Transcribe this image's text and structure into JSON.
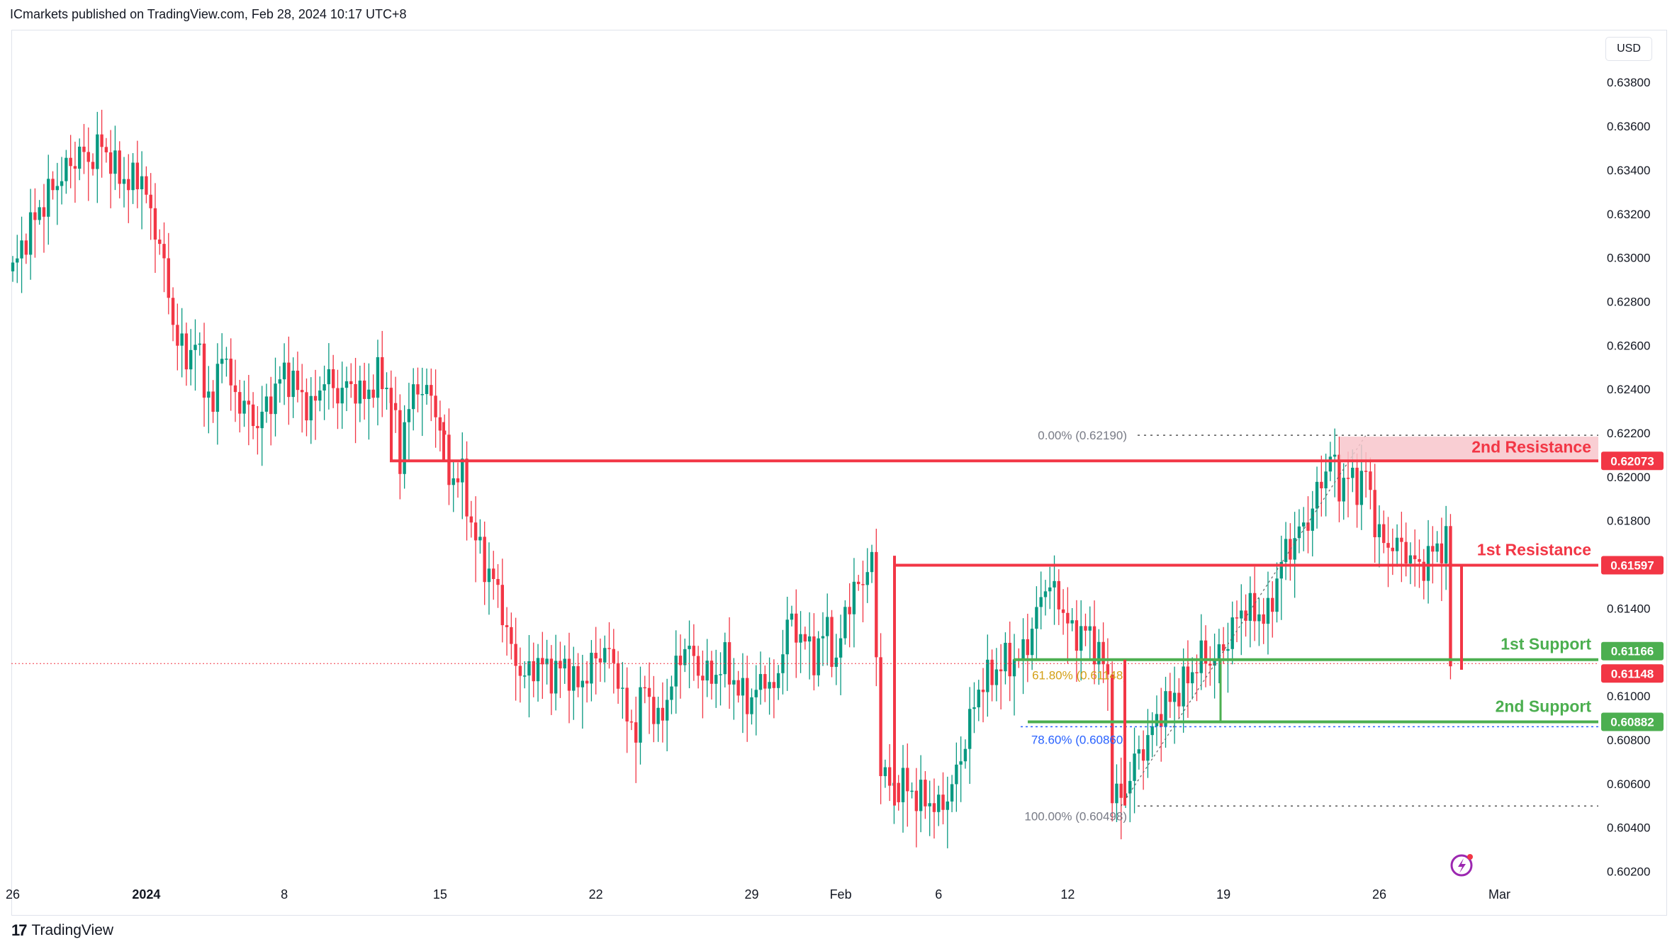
{
  "header": {
    "published": "ICmarkets published on TradingView.com, Feb 28, 2024 10:17 UTC+8"
  },
  "footer": {
    "logo_mark": "17",
    "brand": "TradingView"
  },
  "currency_label": "USD",
  "colors": {
    "up": "#089981",
    "down": "#f23645",
    "resistance": "#f23645",
    "support": "#4caf50",
    "resistance_zone": "#f8c5cb",
    "fib_61": "#d4a017",
    "fib_78": "#2962ff",
    "axis_text": "#131722"
  },
  "chart_data": {
    "type": "candlestick",
    "title": "",
    "ylabel": "",
    "ylim": [
      0.6014,
      0.6404
    ],
    "y_ticks": [
      "0.60200",
      "0.60400",
      "0.60600",
      "0.60800",
      "0.61000",
      "0.61200",
      "0.61400",
      "0.61600",
      "0.61800",
      "0.62000",
      "0.62200",
      "0.62400",
      "0.62600",
      "0.62800",
      "0.63000",
      "0.63200",
      "0.63400",
      "0.63600",
      "0.63800"
    ],
    "x_ticks": [
      {
        "label": "26",
        "bar": 0
      },
      {
        "label": "2024",
        "bar": 30
      },
      {
        "label": "8",
        "bar": 61
      },
      {
        "label": "15",
        "bar": 96
      },
      {
        "label": "22",
        "bar": 131
      },
      {
        "label": "29",
        "bar": 166
      },
      {
        "label": "Feb",
        "bar": 186
      },
      {
        "label": "6",
        "bar": 208
      },
      {
        "label": "12",
        "bar": 237
      },
      {
        "label": "19",
        "bar": 272
      },
      {
        "label": "26",
        "bar": 307
      },
      {
        "label": "Mar",
        "bar": 334
      }
    ],
    "levels": [
      {
        "name": "2nd Resistance",
        "value": 0.62073,
        "badge": "0.62073",
        "kind": "resistance"
      },
      {
        "name": "1st Resistance",
        "value": 0.61597,
        "badge": "0.61597",
        "kind": "resistance"
      },
      {
        "name": "1st Support",
        "value": 0.61166,
        "badge": "0.61166",
        "kind": "support"
      },
      {
        "name": "2nd Support",
        "value": 0.60882,
        "badge": "0.60882",
        "kind": "support"
      }
    ],
    "last_price": {
      "value": 0.61148,
      "badge": "0.61148"
    },
    "fib": [
      {
        "label": "0.00% (0.62190)",
        "value": 0.6219
      },
      {
        "label": "61.80% (0.61148)",
        "value": 0.61148
      },
      {
        "label": "78.60% (0.60860)",
        "value": 0.6086
      },
      {
        "label": "100.00% (0.60498)",
        "value": 0.60498
      }
    ],
    "waypoints": [
      [
        0,
        0.6294
      ],
      [
        3,
        0.631
      ],
      [
        6,
        0.6322
      ],
      [
        9,
        0.6332
      ],
      [
        12,
        0.634
      ],
      [
        15,
        0.6348
      ],
      [
        17,
        0.6344
      ],
      [
        20,
        0.6352
      ],
      [
        23,
        0.634
      ],
      [
        26,
        0.6334
      ],
      [
        29,
        0.6338
      ],
      [
        31,
        0.6318
      ],
      [
        33,
        0.6308
      ],
      [
        35,
        0.6282
      ],
      [
        37,
        0.6262
      ],
      [
        39,
        0.6254
      ],
      [
        41,
        0.6262
      ],
      [
        43,
        0.6244
      ],
      [
        45,
        0.623
      ],
      [
        47,
        0.6262
      ],
      [
        49,
        0.624
      ],
      [
        52,
        0.6232
      ],
      [
        55,
        0.6224
      ],
      [
        58,
        0.6236
      ],
      [
        61,
        0.6248
      ],
      [
        64,
        0.624
      ],
      [
        67,
        0.623
      ],
      [
        70,
        0.6246
      ],
      [
        73,
        0.6238
      ],
      [
        76,
        0.6242
      ],
      [
        79,
        0.6236
      ],
      [
        82,
        0.6246
      ],
      [
        85,
        0.6238
      ],
      [
        87,
        0.6206
      ],
      [
        88,
        0.6226
      ],
      [
        91,
        0.6242
      ],
      [
        94,
        0.6236
      ],
      [
        96,
        0.6224
      ],
      [
        98,
        0.62
      ],
      [
        101,
        0.62
      ],
      [
        103,
        0.6178
      ],
      [
        106,
        0.616
      ],
      [
        109,
        0.6148
      ],
      [
        112,
        0.612
      ],
      [
        115,
        0.6108
      ],
      [
        118,
        0.6116
      ],
      [
        121,
        0.611
      ],
      [
        124,
        0.6114
      ],
      [
        127,
        0.6104
      ],
      [
        130,
        0.6114
      ],
      [
        133,
        0.6122
      ],
      [
        136,
        0.611
      ],
      [
        138,
        0.6088
      ],
      [
        140,
        0.6086
      ],
      [
        142,
        0.6106
      ],
      [
        145,
        0.6086
      ],
      [
        148,
        0.6106
      ],
      [
        151,
        0.6124
      ],
      [
        154,
        0.6112
      ],
      [
        157,
        0.6108
      ],
      [
        160,
        0.6116
      ],
      [
        163,
        0.6102
      ],
      [
        166,
        0.6098
      ],
      [
        169,
        0.611
      ],
      [
        171,
        0.61
      ],
      [
        174,
        0.6134
      ],
      [
        177,
        0.6128
      ],
      [
        180,
        0.6118
      ],
      [
        183,
        0.6132
      ],
      [
        185,
        0.6112
      ],
      [
        187,
        0.614
      ],
      [
        190,
        0.615
      ],
      [
        192,
        0.6158
      ],
      [
        193,
        0.6162
      ],
      [
        195,
        0.607
      ],
      [
        197,
        0.6058
      ],
      [
        200,
        0.606
      ],
      [
        203,
        0.6054
      ],
      [
        206,
        0.6052
      ],
      [
        208,
        0.6048
      ],
      [
        211,
        0.6058
      ],
      [
        214,
        0.608
      ],
      [
        217,
        0.6104
      ],
      [
        220,
        0.611
      ],
      [
        223,
        0.6116
      ],
      [
        226,
        0.6116
      ],
      [
        229,
        0.613
      ],
      [
        232,
        0.6152
      ],
      [
        235,
        0.6144
      ],
      [
        238,
        0.6128
      ],
      [
        241,
        0.613
      ],
      [
        244,
        0.612
      ],
      [
        246,
        0.6108
      ],
      [
        247,
        0.6058
      ],
      [
        249,
        0.6052
      ],
      [
        252,
        0.607
      ],
      [
        255,
        0.608
      ],
      [
        258,
        0.6094
      ],
      [
        261,
        0.61
      ],
      [
        264,
        0.6108
      ],
      [
        267,
        0.6118
      ],
      [
        270,
        0.6116
      ],
      [
        273,
        0.6126
      ],
      [
        276,
        0.614
      ],
      [
        279,
        0.6138
      ],
      [
        282,
        0.6136
      ],
      [
        285,
        0.6162
      ],
      [
        288,
        0.6172
      ],
      [
        291,
        0.618
      ],
      [
        294,
        0.6198
      ],
      [
        296,
        0.621
      ],
      [
        298,
        0.6196
      ],
      [
        300,
        0.62
      ],
      [
        302,
        0.6196
      ],
      [
        304,
        0.6202
      ],
      [
        306,
        0.618
      ],
      [
        308,
        0.6168
      ],
      [
        310,
        0.617
      ],
      [
        313,
        0.6166
      ],
      [
        316,
        0.6158
      ],
      [
        319,
        0.6166
      ],
      [
        322,
        0.617
      ],
      [
        323,
        0.6115
      ]
    ]
  }
}
